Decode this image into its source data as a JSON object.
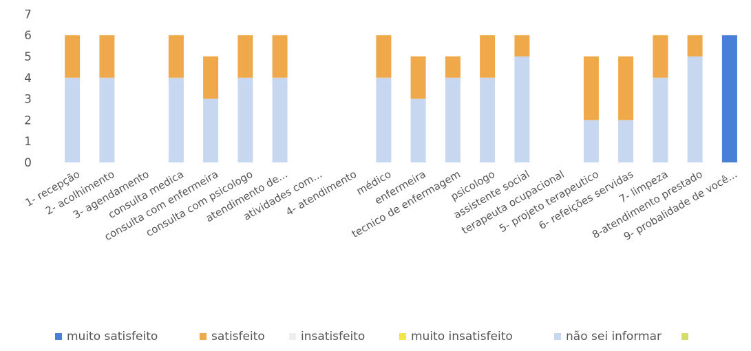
{
  "chart_data": {
    "type": "bar",
    "stacked": true,
    "title": "",
    "xlabel": "",
    "ylabel": "",
    "ylim": [
      0,
      7
    ],
    "yticks": [
      "0",
      "1",
      "2",
      "3",
      "4",
      "5",
      "6",
      "7"
    ],
    "grid": false,
    "legend_position": "bottom",
    "categories": [
      "1- recepção",
      "2- acolhimento",
      "3- agendamento",
      "consulta medica",
      "consulta com enfermeira",
      "consulta com psicologo",
      "atendimento de...",
      "atividades com...",
      "4- atendimento",
      "médico",
      "enfermeira",
      "tecnico de enfermagem",
      "psicologo",
      "assistente social",
      "terapeuta ocupacional",
      "5- projeto terapeutico",
      "6- refeições servidas",
      "7- limpeza",
      "8-atendimento prestado",
      "9- probalidade de você..."
    ],
    "series": [
      {
        "name": "muito satisfeito",
        "color": "#4a7fd8",
        "values": [
          0,
          0,
          0,
          0,
          0,
          0,
          0,
          0,
          0,
          0,
          0,
          0,
          0,
          0,
          0,
          0,
          0,
          0,
          0,
          6
        ]
      },
      {
        "name": "satisfeito",
        "color": "#f0a94a",
        "values": [
          2,
          2,
          0,
          2,
          2,
          2,
          2,
          0,
          0,
          2,
          2,
          1,
          2,
          1,
          0,
          3,
          3,
          2,
          1,
          0
        ]
      },
      {
        "name": "insatisfeito",
        "color": "#eeeeee",
        "values": [
          0,
          0,
          0,
          0,
          0,
          0,
          0,
          0,
          0,
          0,
          0,
          0,
          0,
          0,
          0,
          0,
          0,
          0,
          0,
          0
        ]
      },
      {
        "name": "muito insatisfeito",
        "color": "#f2e64a",
        "values": [
          0,
          0,
          0,
          0,
          0,
          0,
          0,
          0,
          0,
          0,
          0,
          0,
          0,
          0,
          0,
          0,
          0,
          0,
          0,
          0
        ]
      },
      {
        "name": "não sei informar",
        "color": "#c7d7ef",
        "values": [
          4,
          4,
          0,
          4,
          3,
          4,
          4,
          0,
          0,
          4,
          3,
          4,
          4,
          5,
          0,
          2,
          2,
          4,
          5,
          0
        ]
      },
      {
        "name": "",
        "color": "#d4dc6a",
        "values": [
          0,
          0,
          0,
          0,
          0,
          0,
          0,
          0,
          0,
          0,
          0,
          0,
          0,
          0,
          0,
          0,
          0,
          0,
          0,
          0
        ]
      }
    ]
  }
}
